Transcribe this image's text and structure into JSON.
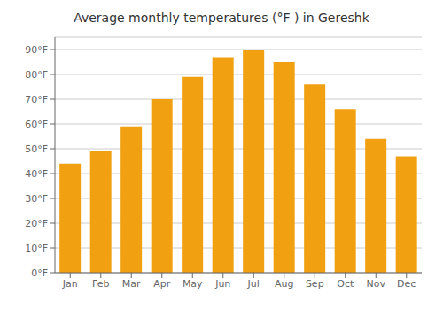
{
  "chart_data": {
    "type": "bar",
    "title": "Average monthly temperatures (°F ) in Gereshk",
    "categories": [
      "Jan",
      "Feb",
      "Mar",
      "Apr",
      "May",
      "Jun",
      "Jul",
      "Aug",
      "Sep",
      "Oct",
      "Nov",
      "Dec"
    ],
    "values": [
      44,
      49,
      59,
      70,
      79,
      87,
      90,
      85,
      76,
      66,
      54,
      47
    ],
    "color": "#F0A010",
    "ylim": [
      0,
      95
    ],
    "yticks": [
      {
        "value": 0,
        "label": "0°F"
      },
      {
        "value": 10,
        "label": "10°F"
      },
      {
        "value": 20,
        "label": "20°F"
      },
      {
        "value": 30,
        "label": "30°F"
      },
      {
        "value": 40,
        "label": "40°F"
      },
      {
        "value": 50,
        "label": "50°F"
      },
      {
        "value": 60,
        "label": "60°F"
      },
      {
        "value": 70,
        "label": "70°F"
      },
      {
        "value": 80,
        "label": "80°F"
      },
      {
        "value": 90,
        "label": "90°F"
      }
    ],
    "grid": true
  }
}
